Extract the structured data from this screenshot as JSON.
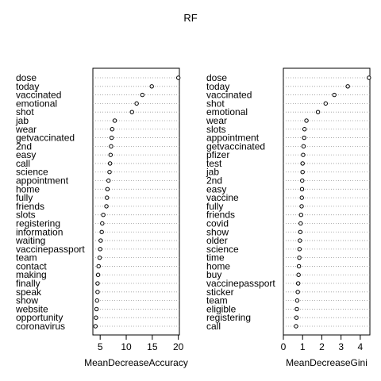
{
  "title": "RF",
  "chart_data": [
    {
      "type": "dotplot",
      "xlabel": "MeanDecreaseAccuracy",
      "ylabel": "",
      "xlim": [
        3.6,
        20.2
      ],
      "xticks": [
        5,
        10,
        15,
        20
      ],
      "grid": true,
      "categories": [
        "dose",
        "today",
        "vaccinated",
        "emotional",
        "shot",
        "jab",
        "wear",
        "getvaccinated",
        "2nd",
        "easy",
        "call",
        "science",
        "appointment",
        "home",
        "fully",
        "friends",
        "slots",
        "registering",
        "information",
        "waiting",
        "vaccinepassport",
        "team",
        "contact",
        "making",
        "finally",
        "speak",
        "show",
        "website",
        "opportunity",
        "coronavirus"
      ],
      "values": [
        20.0,
        14.9,
        13.1,
        12.0,
        11.1,
        7.8,
        7.3,
        7.2,
        7.1,
        7.0,
        6.9,
        6.8,
        6.6,
        6.4,
        6.3,
        6.2,
        5.6,
        5.4,
        5.3,
        5.1,
        5.0,
        4.9,
        4.7,
        4.6,
        4.5,
        4.5,
        4.4,
        4.3,
        4.2,
        4.1
      ]
    },
    {
      "type": "dotplot",
      "xlabel": "MeanDecreaseGini",
      "ylabel": "",
      "xlim": [
        0,
        4.5
      ],
      "xticks": [
        0,
        1,
        2,
        3,
        4
      ],
      "grid": true,
      "categories": [
        "dose",
        "today",
        "vaccinated",
        "shot",
        "emotional",
        "wear",
        "slots",
        "appointment",
        "getvaccinated",
        "pfizer",
        "test",
        "jab",
        "2nd",
        "easy",
        "vaccine",
        "fully",
        "friends",
        "covid",
        "show",
        "older",
        "science",
        "time",
        "home",
        "buy",
        "vaccinepassport",
        "sticker",
        "team",
        "eligible",
        "registering",
        "call"
      ],
      "values": [
        4.45,
        3.35,
        2.65,
        2.2,
        1.8,
        1.2,
        1.1,
        1.08,
        1.05,
        1.03,
        1.0,
        1.0,
        0.98,
        0.97,
        0.96,
        0.95,
        0.92,
        0.9,
        0.88,
        0.86,
        0.84,
        0.83,
        0.81,
        0.79,
        0.77,
        0.75,
        0.72,
        0.7,
        0.68,
        0.66
      ]
    }
  ]
}
